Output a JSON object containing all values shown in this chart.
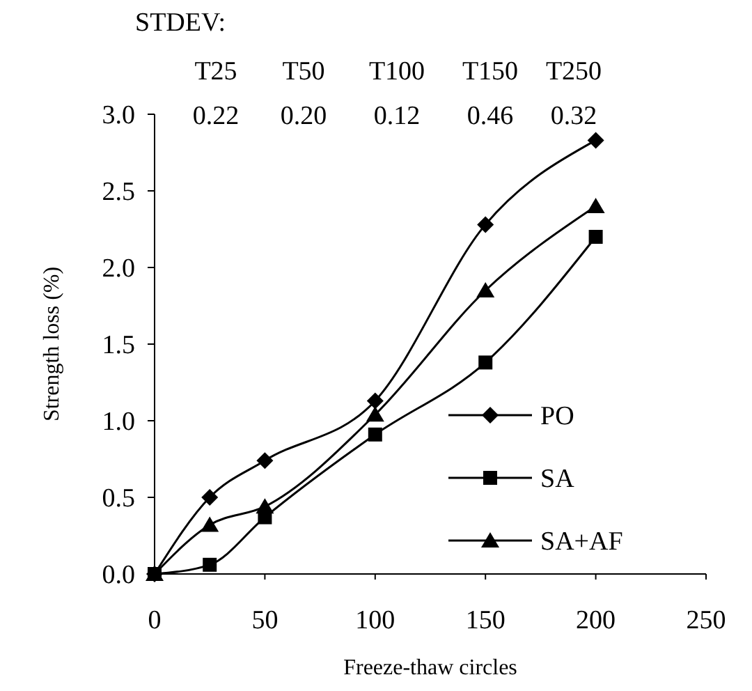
{
  "chart_data": {
    "type": "line",
    "xlabel": "Freeze-thaw circles",
    "ylabel": "Strength loss (%)",
    "x": [
      0,
      25,
      50,
      100,
      150,
      200
    ],
    "series": [
      {
        "name": "PO",
        "color": "#000000",
        "marker": "diamond",
        "values": [
          0,
          0.5,
          0.74,
          1.13,
          2.28,
          2.83
        ]
      },
      {
        "name": "SA",
        "color": "#000000",
        "marker": "square",
        "values": [
          0,
          0.06,
          0.37,
          0.91,
          1.38,
          2.2
        ]
      },
      {
        "name": "SA+AF",
        "color": "#000000",
        "marker": "triangle",
        "values": [
          0,
          0.32,
          0.44,
          1.04,
          1.85,
          2.4
        ]
      }
    ],
    "xlim": [
      0,
      250
    ],
    "xticks": [
      0,
      50,
      100,
      150,
      200,
      250
    ],
    "ylim": [
      0,
      3
    ],
    "yticks": [
      {
        "value": 0,
        "label": "0.0"
      },
      {
        "value": 0.5,
        "label": "0.5"
      },
      {
        "value": 1,
        "label": "1.0"
      },
      {
        "value": 1.5,
        "label": "1.5"
      },
      {
        "value": 2,
        "label": "2.0"
      },
      {
        "value": 2.5,
        "label": "2.5"
      },
      {
        "value": 3,
        "label": "3.0"
      }
    ],
    "grid": false,
    "legend": "bottom right",
    "line_style": "solid",
    "annotations": [
      "STDEV:",
      "T25",
      "T50",
      "T100",
      "T150",
      "T250",
      "0.22",
      "0.20",
      "0.12",
      "0.46",
      "0.32"
    ]
  }
}
